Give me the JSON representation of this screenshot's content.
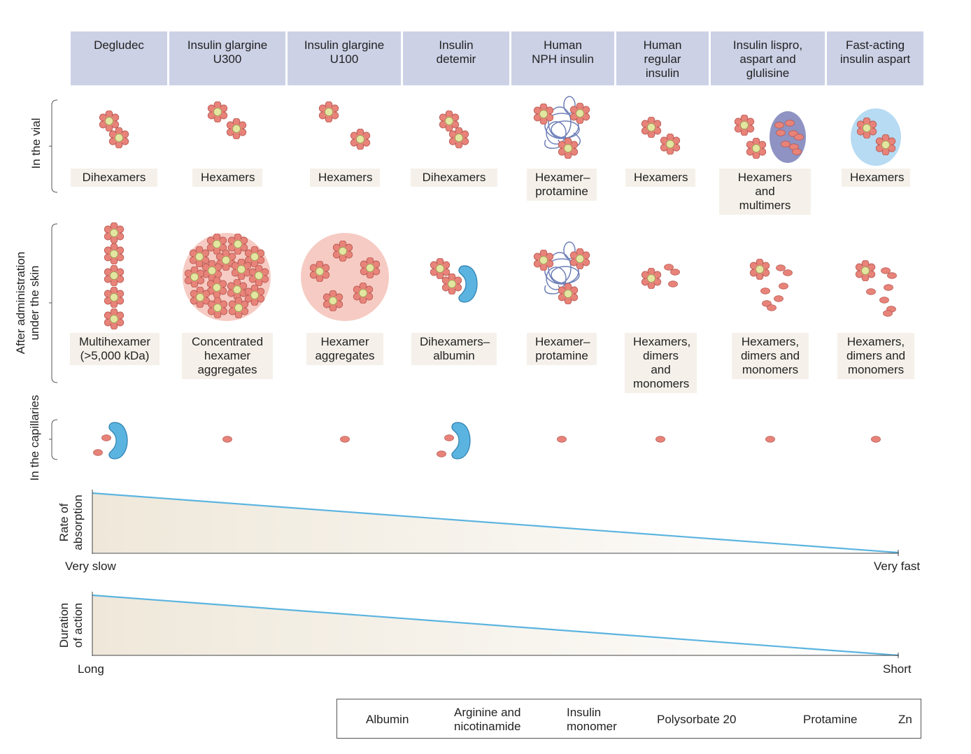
{
  "columns": [
    {
      "header": "Degludec",
      "vial": "Dihexamers",
      "skin": "Multihexamer\n(>5,000 kDa)"
    },
    {
      "header": "Insulin glargine\nU300",
      "vial": "Hexamers",
      "skin": "Concentrated\nhexamer\naggregates"
    },
    {
      "header": "Insulin glargine\nU100",
      "vial": "Hexamers",
      "skin": "Hexamer\naggregates"
    },
    {
      "header": "Insulin\ndetemir",
      "vial": "Dihexamers",
      "skin": "Dihexamers–\nalbumin"
    },
    {
      "header": "Human\nNPH insulin",
      "vial": "Hexamer–\nprotamine",
      "skin": "Hexamer–\nprotamine"
    },
    {
      "header": "Human\nregular\ninsulin",
      "vial": "Hexamers",
      "skin": "Hexamers,\ndimers and\nmonomers"
    },
    {
      "header": "Insulin lispro,\naspart and\nglulisine",
      "vial": "Hexamers and\nmultimers",
      "skin": "Hexamers,\ndimers and\nmonomers"
    },
    {
      "header": "Fast-acting\ninsulin aspart",
      "vial": "Hexamers",
      "skin": "Hexamers,\ndimers and\nmonomers"
    }
  ],
  "rows": {
    "vial": "In the vial",
    "skin": "After administration\nunder the skin",
    "capillaries": "In the capillaries"
  },
  "absorption": {
    "label": "Rate of\nabsorption",
    "left": "Very slow",
    "right": "Very fast"
  },
  "duration": {
    "label": "Duration\nof action",
    "left": "Long",
    "right": "Short"
  },
  "legend": {
    "albumin": "Albumin",
    "arginine": "Arginine and\nnicotinamide",
    "monomer": "Insulin\nmonomer",
    "polysorbate": "Polysorbate 20",
    "protamine": "Protamine",
    "zn": "Zn"
  },
  "colors": {
    "header_bg": "#ccd1e6",
    "label_bg": "#f5f1ea",
    "monomer": "#e8837a",
    "zn": "#e3e6a0",
    "albumin": "#5bb4e0",
    "arginine": "#b6dbf3",
    "polysorbate": "#8e93c3",
    "protamine": "#6f7fb8",
    "line": "#5bb4e0"
  }
}
